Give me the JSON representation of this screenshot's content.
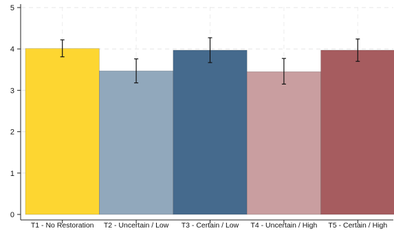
{
  "chart_data": {
    "type": "bar",
    "categories": [
      "T1 - No Restoration",
      "T2 - Uncertain / Low",
      "T3 - Certain / Low",
      "T4 - Uncertain / High",
      "T5 - Certain / High"
    ],
    "values": [
      4.01,
      3.47,
      3.97,
      3.45,
      3.97
    ],
    "error_low": [
      3.81,
      3.18,
      3.67,
      3.15,
      3.7
    ],
    "error_high": [
      4.22,
      3.76,
      4.27,
      3.77,
      4.24
    ],
    "colors": [
      "#fdd631",
      "#91a8bc",
      "#456a8d",
      "#c99ea0",
      "#a65c5f"
    ],
    "title": "",
    "xlabel": "",
    "ylabel": "",
    "ylim": [
      0,
      5
    ],
    "yticks": [
      0,
      1,
      2,
      3,
      4,
      5
    ],
    "grid": true,
    "legend": "none"
  }
}
